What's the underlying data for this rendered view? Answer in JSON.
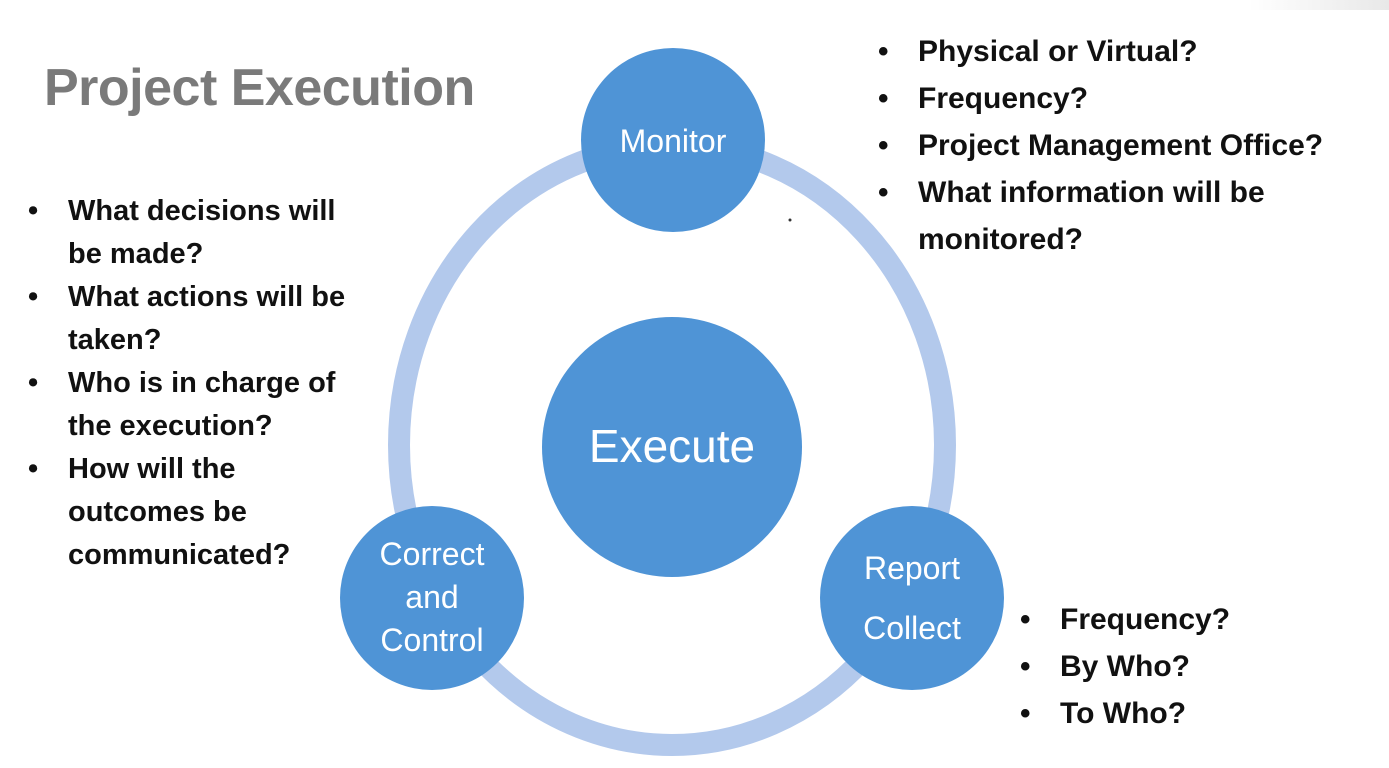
{
  "slide": {
    "title": "Project Execution"
  },
  "diagram": {
    "center": "Execute",
    "nodes": {
      "monitor": "Monitor",
      "report": [
        "Report",
        "Collect"
      ],
      "correct": [
        "Correct",
        "and",
        "Control"
      ]
    }
  },
  "lists": {
    "left": [
      [
        "What decisions will",
        "be made?"
      ],
      [
        "What actions will be",
        "taken?"
      ],
      [
        "Who is in charge of",
        "the execution?"
      ],
      [
        "How will the",
        "outcomes be",
        "communicated?"
      ]
    ],
    "top_right": [
      [
        "Physical or Virtual?"
      ],
      [
        "Frequency?"
      ],
      [
        "Project Management Office?"
      ],
      [
        "What information will be",
        "monitored?"
      ]
    ],
    "bottom_right": [
      [
        "Frequency?"
      ],
      [
        "By Who?"
      ],
      [
        "To Who?"
      ]
    ]
  },
  "colors": {
    "node": "#4f94d6",
    "ring": "#b3c9ec",
    "title": "#7a7a7a"
  }
}
